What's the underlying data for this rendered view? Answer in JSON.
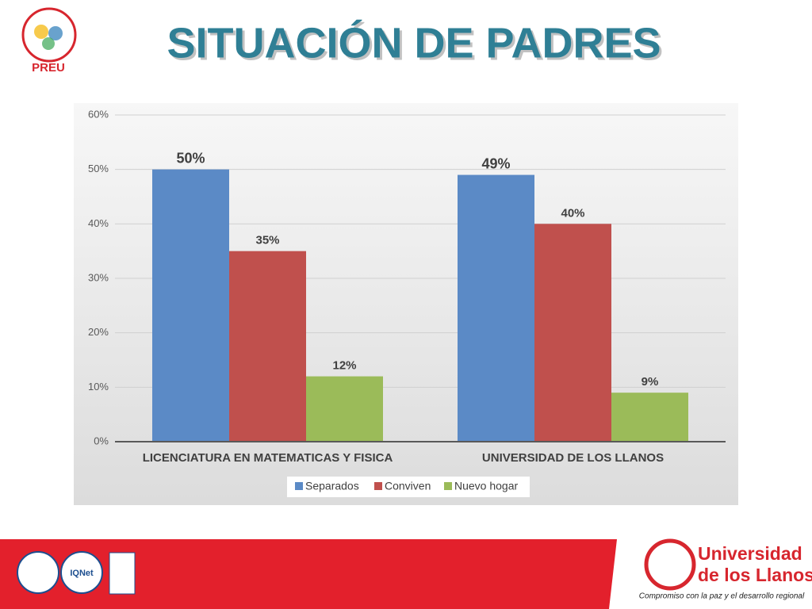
{
  "header": {
    "title": "SITUACIÓN DE PADRES",
    "logo_text": "PREU"
  },
  "chart_data": {
    "type": "bar",
    "categories": [
      "LICENCIATURA EN MATEMATICAS Y FISICA",
      "UNIVERSIDAD DE LOS LLANOS"
    ],
    "series": [
      {
        "name": "Separados",
        "color": "#5b8ac6",
        "values": [
          50,
          49
        ],
        "value_labels": [
          "50%",
          "49%"
        ]
      },
      {
        "name": "Conviven",
        "color": "#c0504d",
        "values": [
          35,
          40
        ],
        "value_labels": [
          "35%",
          "40%"
        ]
      },
      {
        "name": "Nuevo hogar",
        "color": "#9bbb59",
        "values": [
          12,
          9
        ],
        "value_labels": [
          "12%",
          "9%"
        ]
      }
    ],
    "ylim": [
      0,
      60
    ],
    "yticks": [
      {
        "value": 0,
        "label": "0%"
      },
      {
        "value": 10,
        "label": "10%"
      },
      {
        "value": 20,
        "label": "20%"
      },
      {
        "value": 30,
        "label": "30%"
      },
      {
        "value": 40,
        "label": "40%"
      },
      {
        "value": 50,
        "label": "50%"
      },
      {
        "value": 60,
        "label": "60%"
      }
    ],
    "grid": true,
    "legend": "bottom"
  },
  "footer": {
    "certification": "IQNet",
    "university": [
      "Universidad",
      "de los Llanos"
    ],
    "motto": "Compromiso con la paz y el desarrollo regional"
  }
}
